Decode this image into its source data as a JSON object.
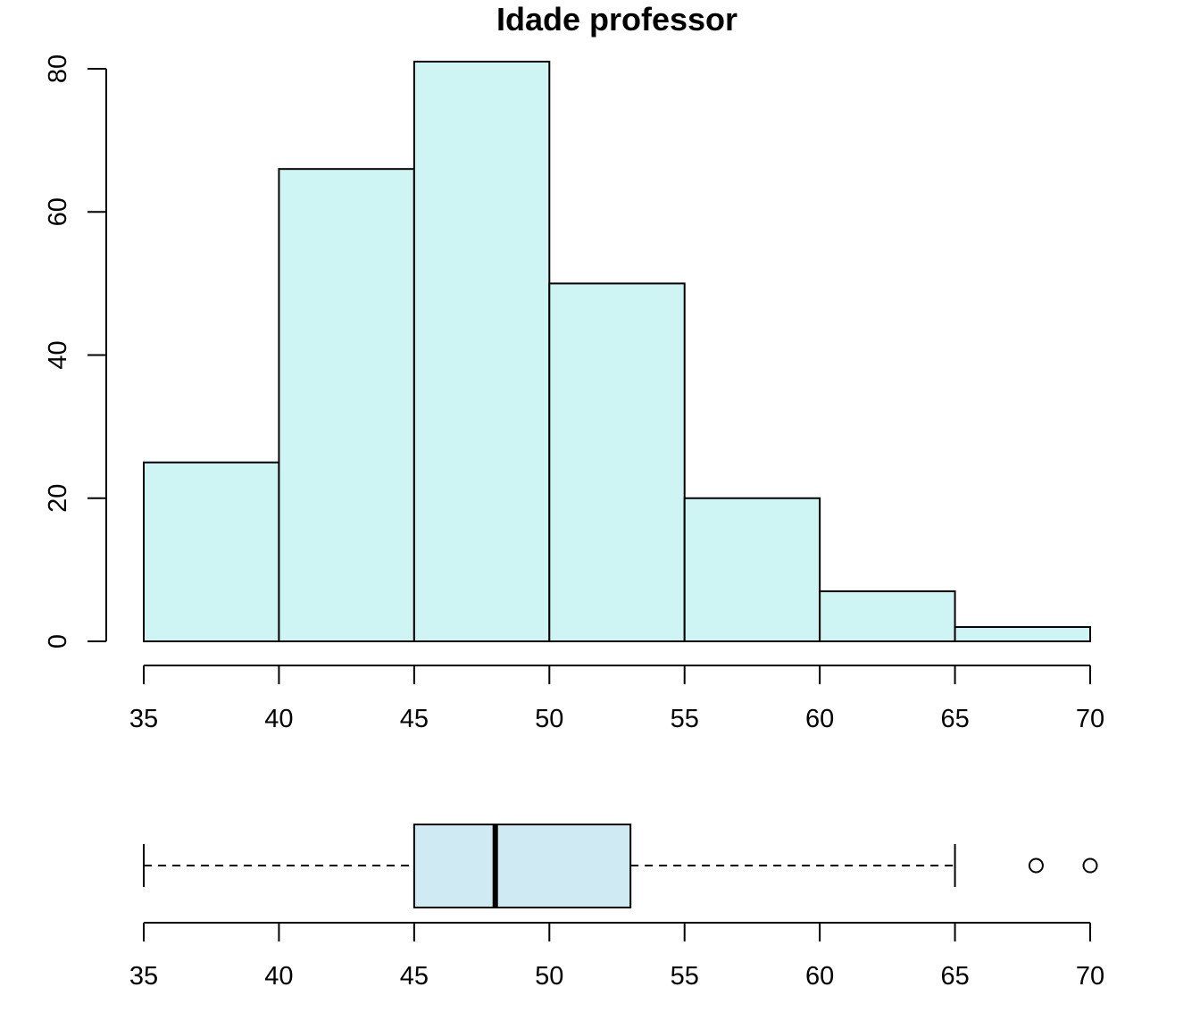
{
  "chart_data": [
    {
      "type": "histogram",
      "title": "Idade professor",
      "xlabel": "",
      "ylabel": "",
      "bins": [
        {
          "from": 35,
          "to": 40,
          "count": 25
        },
        {
          "from": 40,
          "to": 45,
          "count": 66
        },
        {
          "from": 45,
          "to": 50,
          "count": 81
        },
        {
          "from": 50,
          "to": 55,
          "count": 50
        },
        {
          "from": 55,
          "to": 60,
          "count": 20
        },
        {
          "from": 60,
          "to": 65,
          "count": 7
        },
        {
          "from": 65,
          "to": 70,
          "count": 2
        }
      ],
      "xlim": [
        35,
        70
      ],
      "ylim": [
        0,
        80
      ],
      "x_ticks": [
        35,
        40,
        45,
        50,
        55,
        60,
        65,
        70
      ],
      "y_ticks": [
        0,
        20,
        40,
        60,
        80
      ],
      "bar_color": "#cff4f4",
      "grid": false
    },
    {
      "type": "boxplot",
      "orientation": "horizontal",
      "whisker_low": 35,
      "q1": 45,
      "median": 48,
      "q3": 53,
      "whisker_high": 65,
      "outliers": [
        68,
        70
      ],
      "x_ticks": [
        35,
        40,
        45,
        50,
        55,
        60,
        65,
        70
      ],
      "box_color": "#d0eaf4"
    }
  ]
}
